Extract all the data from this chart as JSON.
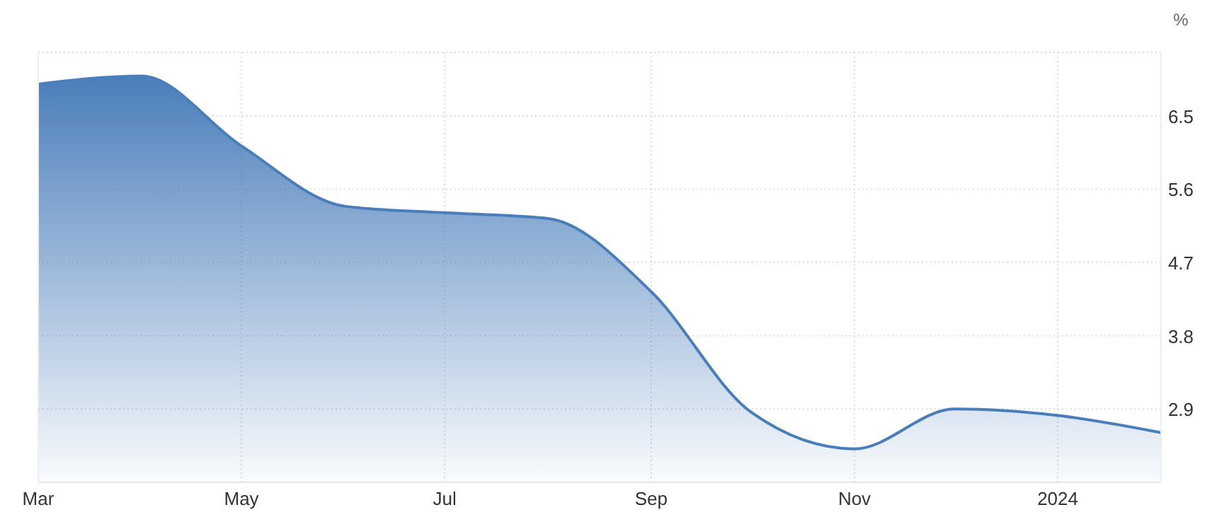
{
  "chart_data": {
    "type": "area",
    "ylabel": "%",
    "x": [
      "2023-03",
      "2023-04",
      "2023-05",
      "2023-06",
      "2023-07",
      "2023-08",
      "2023-09",
      "2023-10",
      "2023-11",
      "2023-12",
      "2024-01",
      "2024-02"
    ],
    "series": [
      {
        "color": "#4a7ebb",
        "values": [
          6.89,
          6.99,
          6.13,
          5.39,
          5.31,
          5.24,
          4.34,
          2.86,
          2.41,
          2.9,
          2.82,
          2.61
        ]
      }
    ],
    "xlim": [
      "2023-03",
      "2024-02"
    ],
    "xticks": [
      {
        "value": "2023-03",
        "label": "Mar"
      },
      {
        "value": "2023-05",
        "label": "May"
      },
      {
        "value": "2023-07",
        "label": "Jul"
      },
      {
        "value": "2023-09",
        "label": "Sep"
      },
      {
        "value": "2023-11",
        "label": "Nov"
      },
      {
        "value": "2024-01",
        "label": "2024"
      }
    ],
    "ylim": [
      2.0,
      7.28
    ],
    "yticks": [
      2.9,
      3.8,
      4.7,
      5.6,
      6.5
    ],
    "grid": true
  }
}
